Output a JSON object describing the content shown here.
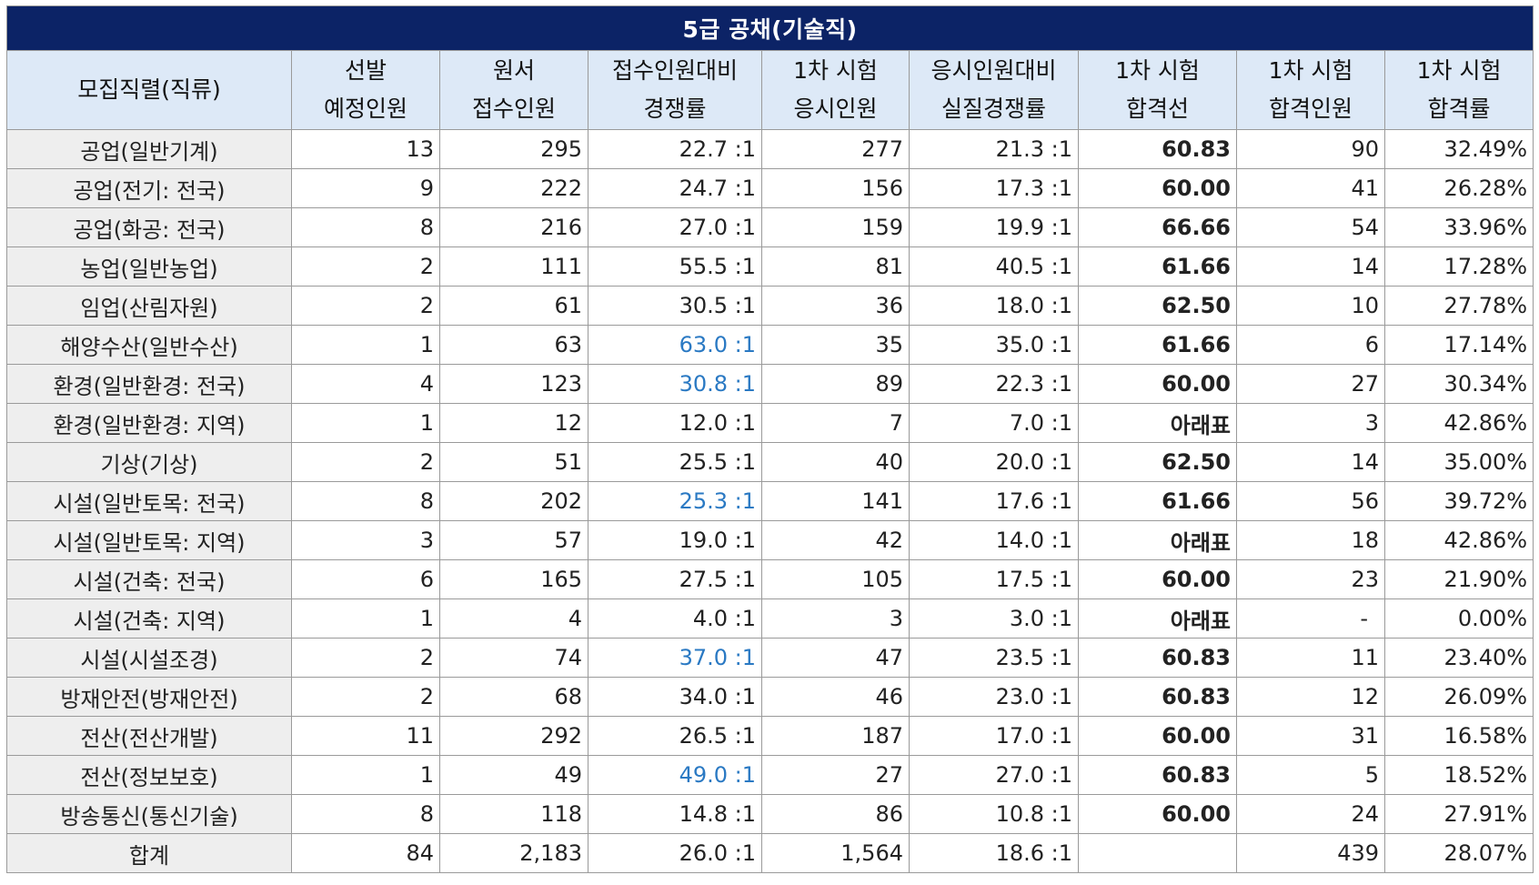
{
  "title": "5급 공채(기술직)",
  "headers": [
    {
      "line1": "모집직렬(직류)",
      "line2": ""
    },
    {
      "line1": "선발",
      "line2": "예정인원"
    },
    {
      "line1": "원서",
      "line2": "접수인원"
    },
    {
      "line1": "접수인원대비",
      "line2": "경쟁률"
    },
    {
      "line1": "1차 시험",
      "line2": "응시인원"
    },
    {
      "line1": "응시인원대비",
      "line2": "실질경쟁률"
    },
    {
      "line1": "1차 시험",
      "line2": "합격선"
    },
    {
      "line1": "1차 시험",
      "line2": "합격인원"
    },
    {
      "line1": "1차 시험",
      "line2": "합격률"
    }
  ],
  "rows": [
    {
      "name": "공업(일반기계)",
      "planned": "13",
      "applied": "295",
      "ratio": "22.7 :1",
      "ratio_highlight": false,
      "exam": "277",
      "real_ratio": "21.3 :1",
      "cutoff": "60.83",
      "passed": "90",
      "rate": "32.49%"
    },
    {
      "name": "공업(전기: 전국)",
      "planned": "9",
      "applied": "222",
      "ratio": "24.7 :1",
      "ratio_highlight": false,
      "exam": "156",
      "real_ratio": "17.3 :1",
      "cutoff": "60.00",
      "passed": "41",
      "rate": "26.28%"
    },
    {
      "name": "공업(화공: 전국)",
      "planned": "8",
      "applied": "216",
      "ratio": "27.0 :1",
      "ratio_highlight": false,
      "exam": "159",
      "real_ratio": "19.9 :1",
      "cutoff": "66.66",
      "passed": "54",
      "rate": "33.96%"
    },
    {
      "name": "농업(일반농업)",
      "planned": "2",
      "applied": "111",
      "ratio": "55.5 :1",
      "ratio_highlight": false,
      "exam": "81",
      "real_ratio": "40.5 :1",
      "cutoff": "61.66",
      "passed": "14",
      "rate": "17.28%"
    },
    {
      "name": "임업(산림자원)",
      "planned": "2",
      "applied": "61",
      "ratio": "30.5 :1",
      "ratio_highlight": false,
      "exam": "36",
      "real_ratio": "18.0 :1",
      "cutoff": "62.50",
      "passed": "10",
      "rate": "27.78%"
    },
    {
      "name": "해양수산(일반수산)",
      "planned": "1",
      "applied": "63",
      "ratio": "63.0 :1",
      "ratio_highlight": true,
      "exam": "35",
      "real_ratio": "35.0 :1",
      "cutoff": "61.66",
      "passed": "6",
      "rate": "17.14%"
    },
    {
      "name": "환경(일반환경: 전국)",
      "planned": "4",
      "applied": "123",
      "ratio": "30.8 :1",
      "ratio_highlight": true,
      "exam": "89",
      "real_ratio": "22.3 :1",
      "cutoff": "60.00",
      "passed": "27",
      "rate": "30.34%"
    },
    {
      "name": "환경(일반환경: 지역)",
      "planned": "1",
      "applied": "12",
      "ratio": "12.0 :1",
      "ratio_highlight": false,
      "exam": "7",
      "real_ratio": "7.0 :1",
      "cutoff": "아래표",
      "passed": "3",
      "rate": "42.86%"
    },
    {
      "name": "기상(기상)",
      "planned": "2",
      "applied": "51",
      "ratio": "25.5 :1",
      "ratio_highlight": false,
      "exam": "40",
      "real_ratio": "20.0 :1",
      "cutoff": "62.50",
      "passed": "14",
      "rate": "35.00%"
    },
    {
      "name": "시설(일반토목: 전국)",
      "planned": "8",
      "applied": "202",
      "ratio": "25.3 :1",
      "ratio_highlight": true,
      "exam": "141",
      "real_ratio": "17.6 :1",
      "cutoff": "61.66",
      "passed": "56",
      "rate": "39.72%"
    },
    {
      "name": "시설(일반토목: 지역)",
      "planned": "3",
      "applied": "57",
      "ratio": "19.0 :1",
      "ratio_highlight": false,
      "exam": "42",
      "real_ratio": "14.0 :1",
      "cutoff": "아래표",
      "passed": "18",
      "rate": "42.86%"
    },
    {
      "name": "시설(건축: 전국)",
      "planned": "6",
      "applied": "165",
      "ratio": "27.5 :1",
      "ratio_highlight": false,
      "exam": "105",
      "real_ratio": "17.5 :1",
      "cutoff": "60.00",
      "passed": "23",
      "rate": "21.90%"
    },
    {
      "name": "시설(건축: 지역)",
      "planned": "1",
      "applied": "4",
      "ratio": "4.0 :1",
      "ratio_highlight": false,
      "exam": "3",
      "real_ratio": "3.0 :1",
      "cutoff": "아래표",
      "passed": "-",
      "rate": "0.00%"
    },
    {
      "name": "시설(시설조경)",
      "planned": "2",
      "applied": "74",
      "ratio": "37.0 :1",
      "ratio_highlight": true,
      "exam": "47",
      "real_ratio": "23.5 :1",
      "cutoff": "60.83",
      "passed": "11",
      "rate": "23.40%"
    },
    {
      "name": "방재안전(방재안전)",
      "planned": "2",
      "applied": "68",
      "ratio": "34.0 :1",
      "ratio_highlight": false,
      "exam": "46",
      "real_ratio": "23.0 :1",
      "cutoff": "60.83",
      "passed": "12",
      "rate": "26.09%"
    },
    {
      "name": "전산(전산개발)",
      "planned": "11",
      "applied": "292",
      "ratio": "26.5 :1",
      "ratio_highlight": false,
      "exam": "187",
      "real_ratio": "17.0 :1",
      "cutoff": "60.00",
      "passed": "31",
      "rate": "16.58%"
    },
    {
      "name": "전산(정보보호)",
      "planned": "1",
      "applied": "49",
      "ratio": "49.0 :1",
      "ratio_highlight": true,
      "exam": "27",
      "real_ratio": "27.0 :1",
      "cutoff": "60.83",
      "passed": "5",
      "rate": "18.52%"
    },
    {
      "name": "방송통신(통신기술)",
      "planned": "8",
      "applied": "118",
      "ratio": "14.8 :1",
      "ratio_highlight": false,
      "exam": "86",
      "real_ratio": "10.8 :1",
      "cutoff": "60.00",
      "passed": "24",
      "rate": "27.91%"
    }
  ],
  "total": {
    "name": "합계",
    "planned": "84",
    "applied": "2,183",
    "ratio": "26.0 :1",
    "exam": "1,564",
    "real_ratio": "18.6 :1",
    "cutoff": "",
    "passed": "439",
    "rate": "28.07%"
  },
  "colors": {
    "title_bg": "#0c2366",
    "header_bg": "#dde9f7",
    "name_bg": "#eeeeee",
    "cutoff_blue": "#1f6fc0",
    "ratio_highlight_blue": "#2a79c3"
  }
}
